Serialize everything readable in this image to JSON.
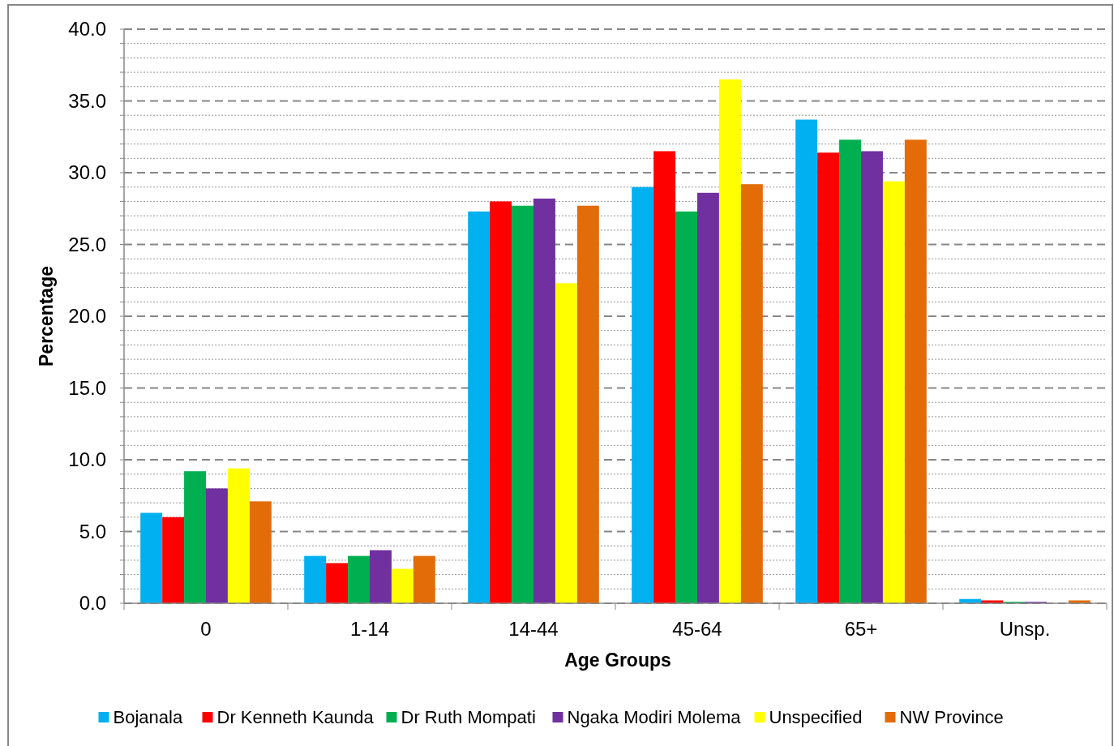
{
  "chart_data": {
    "type": "bar",
    "xlabel": "Age Groups",
    "ylabel": "Percentage",
    "categories": [
      "0",
      "1-14",
      "14-44",
      "45-64",
      "65+",
      "Unsp."
    ],
    "series": [
      {
        "name": "Bojanala",
        "color": "#00b0f0",
        "values": [
          6.3,
          3.3,
          27.3,
          29.0,
          33.7,
          0.3
        ]
      },
      {
        "name": "Dr Kenneth Kaunda",
        "color": "#ff0000",
        "values": [
          6.0,
          2.8,
          28.0,
          31.5,
          31.4,
          0.2
        ]
      },
      {
        "name": "Dr Ruth Mompati",
        "color": "#00b050",
        "values": [
          9.2,
          3.3,
          27.7,
          27.3,
          32.3,
          0.1
        ]
      },
      {
        "name": "Ngaka Modiri Molema",
        "color": "#7030a0",
        "values": [
          8.0,
          3.7,
          28.2,
          28.6,
          31.5,
          0.1
        ]
      },
      {
        "name": "Unspecified",
        "color": "#ffff00",
        "values": [
          9.4,
          2.4,
          22.3,
          36.5,
          29.4,
          0
        ]
      },
      {
        "name": "NW Province",
        "color": "#e36c09",
        "values": [
          7.1,
          3.3,
          27.7,
          29.2,
          32.3,
          0.2
        ]
      }
    ],
    "ylim": [
      0,
      40
    ],
    "yticks": [
      {
        "value": 0,
        "label": "0.0"
      },
      {
        "value": 1,
        "label": null
      },
      {
        "value": 2,
        "label": null
      },
      {
        "value": 3,
        "label": null
      },
      {
        "value": 4,
        "label": null
      },
      {
        "value": 5,
        "label": "5.0"
      },
      {
        "value": 6,
        "label": null
      },
      {
        "value": 7,
        "label": null
      },
      {
        "value": 8,
        "label": null
      },
      {
        "value": 9,
        "label": null
      },
      {
        "value": 10,
        "label": "10.0"
      },
      {
        "value": 11,
        "label": null
      },
      {
        "value": 12,
        "label": null
      },
      {
        "value": 13,
        "label": null
      },
      {
        "value": 14,
        "label": null
      },
      {
        "value": 15,
        "label": "15.0"
      },
      {
        "value": 16,
        "label": null
      },
      {
        "value": 17,
        "label": null
      },
      {
        "value": 18,
        "label": null
      },
      {
        "value": 19,
        "label": null
      },
      {
        "value": 20,
        "label": "20.0"
      },
      {
        "value": 21,
        "label": null
      },
      {
        "value": 22,
        "label": null
      },
      {
        "value": 23,
        "label": null
      },
      {
        "value": 24,
        "label": null
      },
      {
        "value": 25,
        "label": "25.0"
      },
      {
        "value": 26,
        "label": null
      },
      {
        "value": 27,
        "label": null
      },
      {
        "value": 28,
        "label": null
      },
      {
        "value": 29,
        "label": null
      },
      {
        "value": 30,
        "label": "30.0"
      },
      {
        "value": 31,
        "label": null
      },
      {
        "value": 32,
        "label": null
      },
      {
        "value": 33,
        "label": null
      },
      {
        "value": 34,
        "label": null
      },
      {
        "value": 35,
        "label": "35.0"
      },
      {
        "value": 36,
        "label": null
      },
      {
        "value": 37,
        "label": null
      },
      {
        "value": 38,
        "label": null
      },
      {
        "value": 39,
        "label": null
      },
      {
        "value": 40,
        "label": "40.0"
      }
    ],
    "grid": "y",
    "legend": "bottom"
  }
}
